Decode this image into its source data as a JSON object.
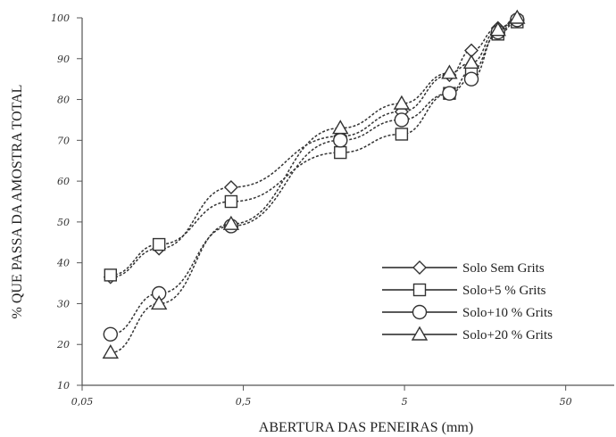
{
  "chart_data": {
    "type": "line",
    "xscale": "log",
    "xlabel": "ABERTURA DAS PENEIRAS (mm)",
    "ylabel": "% QUE PASSA DA AMOSTRA TOTAL",
    "xlim": [
      0.05,
      100
    ],
    "ylim": [
      10,
      100
    ],
    "xticks": [
      {
        "value": 0.05,
        "label": "0,05"
      },
      {
        "value": 0.5,
        "label": "0,5"
      },
      {
        "value": 5,
        "label": "5"
      },
      {
        "value": 50,
        "label": "50"
      }
    ],
    "yticks": [
      {
        "value": 10,
        "label": "10"
      },
      {
        "value": 20,
        "label": "20"
      },
      {
        "value": 30,
        "label": "30"
      },
      {
        "value": 40,
        "label": "40"
      },
      {
        "value": 50,
        "label": "50"
      },
      {
        "value": 60,
        "label": "60"
      },
      {
        "value": 70,
        "label": "70"
      },
      {
        "value": 80,
        "label": "80"
      },
      {
        "value": 90,
        "label": "90"
      },
      {
        "value": 100,
        "label": "100"
      }
    ],
    "x": [
      0.075,
      0.15,
      0.42,
      2.0,
      4.8,
      9.5,
      13.0,
      19.0,
      25.0
    ],
    "series": [
      {
        "name": "Solo Sem Grits",
        "marker": "diamond",
        "values": [
          36.5,
          43.5,
          58.5,
          71.0,
          77.0,
          86.0,
          92.0,
          97.5,
          99.5
        ]
      },
      {
        "name": "Solo+5 % Grits",
        "marker": "square",
        "values": [
          37.0,
          44.5,
          55.0,
          67.0,
          71.5,
          81.5,
          87.0,
          96.0,
          99.0
        ]
      },
      {
        "name": "Solo+10 % Grits",
        "marker": "circle",
        "values": [
          22.5,
          32.5,
          49.0,
          70.0,
          75.0,
          81.5,
          85.0,
          96.5,
          99.5
        ]
      },
      {
        "name": "Solo+20 % Grits",
        "marker": "triangle",
        "values": [
          18.0,
          30.0,
          49.5,
          73.0,
          79.0,
          86.5,
          89.0,
          97.0,
          100.0
        ]
      }
    ],
    "legend_position": "bottom-right",
    "grid": false
  }
}
